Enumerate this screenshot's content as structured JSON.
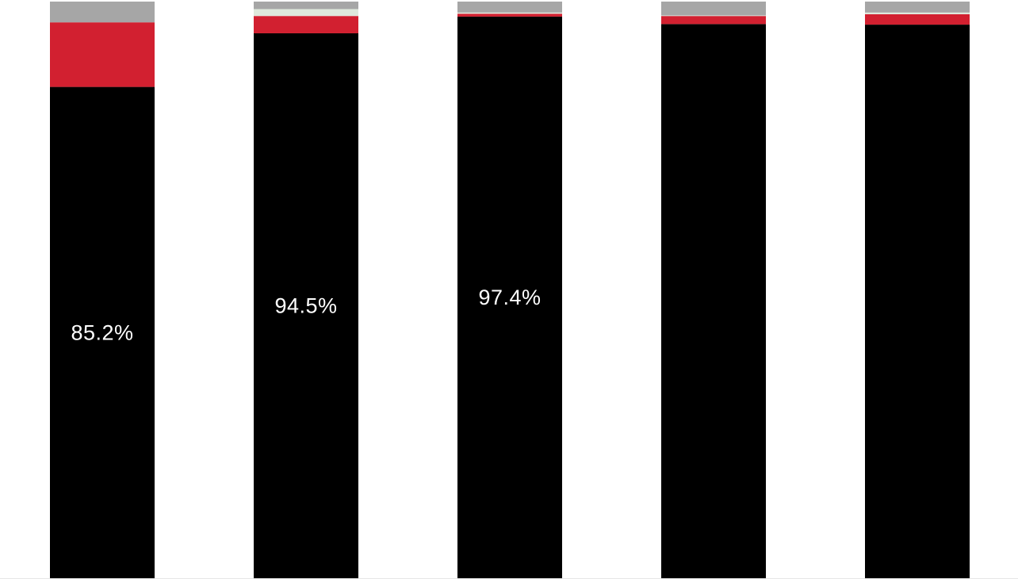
{
  "chart_data": {
    "type": "bar",
    "stacked": true,
    "normalized": true,
    "unit": "%",
    "ylim": [
      0,
      100
    ],
    "grid": false,
    "legend": "none",
    "categories": [
      "",
      "",
      "",
      "",
      ""
    ],
    "series": [
      {
        "color": "#000000",
        "values": [
          85.2,
          94.5,
          97.4,
          96.1,
          96.0
        ],
        "labels": [
          "85.2%",
          "94.5%",
          "97.4%",
          "",
          ""
        ]
      },
      {
        "color": "#d22030",
        "values": [
          11.2,
          3.0,
          0.5,
          1.4,
          1.8
        ],
        "labels": [
          "",
          "",
          "",
          "",
          ""
        ]
      },
      {
        "color": "#dfe8dc",
        "values": [
          0.0,
          1.2,
          0.2,
          0.1,
          0.3
        ],
        "labels": [
          "",
          "",
          "",
          "",
          ""
        ]
      },
      {
        "color": "#a6a6a6",
        "values": [
          3.6,
          1.3,
          1.9,
          2.4,
          1.9
        ],
        "labels": [
          "",
          "",
          "",
          "",
          ""
        ]
      }
    ]
  }
}
